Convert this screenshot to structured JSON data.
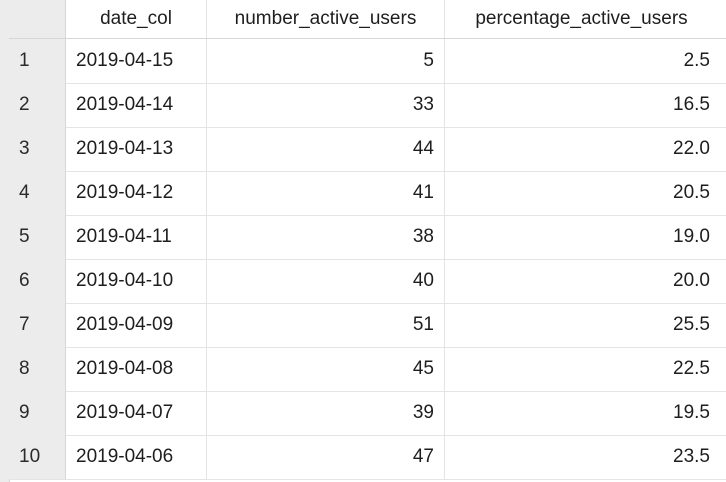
{
  "table": {
    "columns": [
      "",
      "date_col",
      "number_active_users",
      "percentage_active_users"
    ],
    "rows": [
      {
        "index": "1",
        "date_col": "2019-04-15",
        "number_active_users": "5",
        "percentage_active_users": "2.5"
      },
      {
        "index": "2",
        "date_col": "2019-04-14",
        "number_active_users": "33",
        "percentage_active_users": "16.5"
      },
      {
        "index": "3",
        "date_col": "2019-04-13",
        "number_active_users": "44",
        "percentage_active_users": "22.0"
      },
      {
        "index": "4",
        "date_col": "2019-04-12",
        "number_active_users": "41",
        "percentage_active_users": "20.5"
      },
      {
        "index": "5",
        "date_col": "2019-04-11",
        "number_active_users": "38",
        "percentage_active_users": "19.0"
      },
      {
        "index": "6",
        "date_col": "2019-04-10",
        "number_active_users": "40",
        "percentage_active_users": "20.0"
      },
      {
        "index": "7",
        "date_col": "2019-04-09",
        "number_active_users": "51",
        "percentage_active_users": "25.5"
      },
      {
        "index": "8",
        "date_col": "2019-04-08",
        "number_active_users": "45",
        "percentage_active_users": "22.5"
      },
      {
        "index": "9",
        "date_col": "2019-04-07",
        "number_active_users": "39",
        "percentage_active_users": "19.5"
      },
      {
        "index": "10",
        "date_col": "2019-04-06",
        "number_active_users": "47",
        "percentage_active_users": "23.5"
      }
    ]
  }
}
